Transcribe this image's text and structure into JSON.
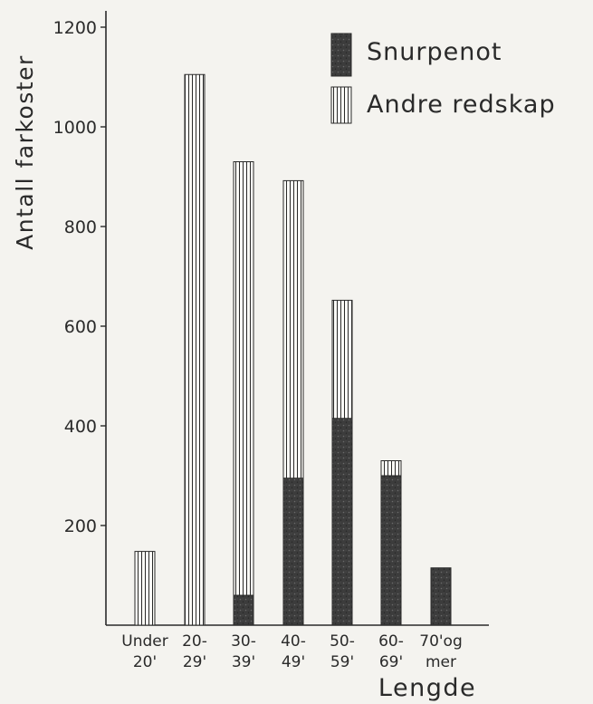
{
  "chart_data": {
    "type": "bar",
    "stacked": true,
    "ylabel": "Antall farkoster",
    "xlabel": "Lengde",
    "ylim": [
      0,
      1200
    ],
    "yticks": [
      200,
      400,
      600,
      800,
      1000,
      1200
    ],
    "grid": false,
    "legend_position": "top-right",
    "categories": [
      [
        "Under",
        "20'"
      ],
      [
        "20-",
        "29'"
      ],
      [
        "30-",
        "39'"
      ],
      [
        "40-",
        "49'"
      ],
      [
        "50-",
        "59'"
      ],
      [
        "60-",
        "69'"
      ],
      [
        "70'og",
        "mer"
      ]
    ],
    "series": [
      {
        "name": "Snurpenot",
        "pattern": "dark-stipple",
        "color": "#3a3a3a",
        "values": [
          0,
          0,
          60,
          295,
          415,
          300,
          115
        ]
      },
      {
        "name": "Andre redskap",
        "pattern": "vertical-stripes",
        "color": "#2a2a2a",
        "values": [
          148,
          1105,
          870,
          597,
          237,
          30,
          0
        ]
      }
    ]
  }
}
